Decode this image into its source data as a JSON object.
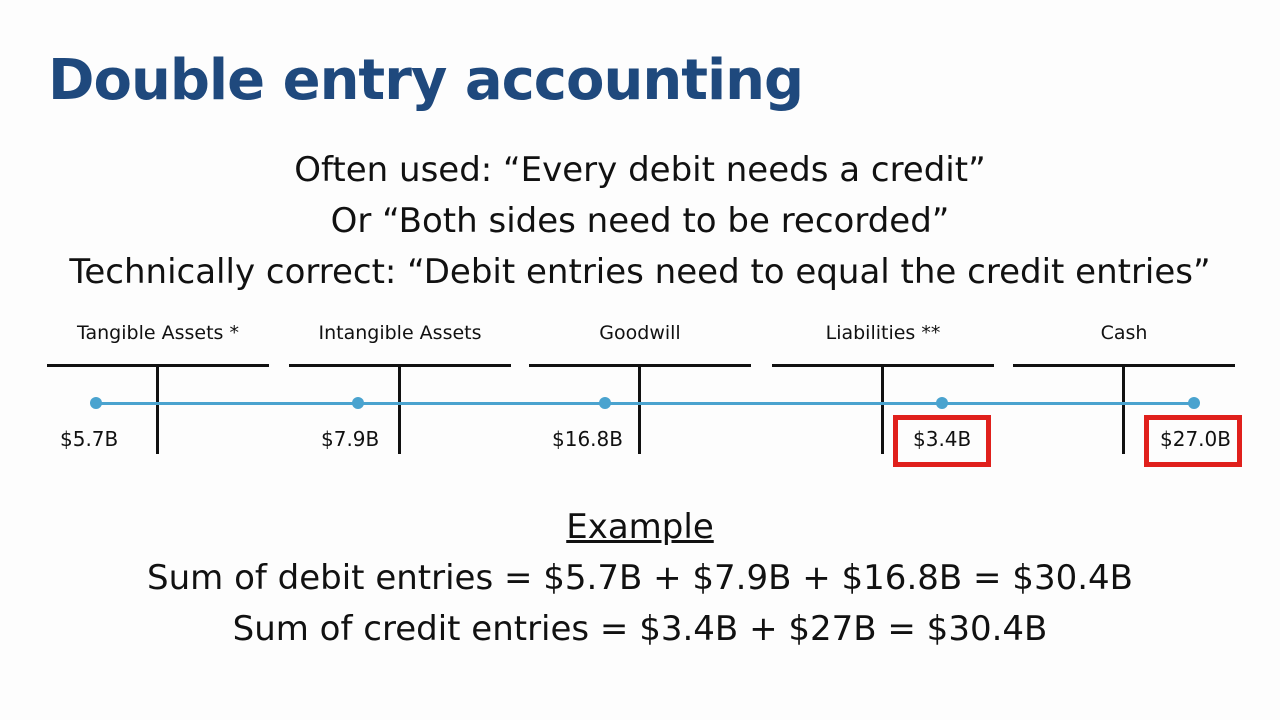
{
  "slide": {
    "title": "Double entry accounting",
    "lines": [
      "Often used: “Every debit needs a credit”",
      "Or “Both sides need to be recorded”",
      "Technically correct: “Debit entries need to equal the credit entries”"
    ]
  },
  "accounts": [
    {
      "name": "Tangible Assets *",
      "entry": "$5.7B",
      "side": "debit",
      "highlighted": false
    },
    {
      "name": "Intangible Assets",
      "entry": "$7.9B",
      "side": "debit",
      "highlighted": false
    },
    {
      "name": "Goodwill",
      "entry": "$16.8B",
      "side": "debit",
      "highlighted": false
    },
    {
      "name": "Liabilities **",
      "entry": "$3.4B",
      "side": "credit",
      "highlighted": true
    },
    {
      "name": "Cash",
      "entry": "$27.0B",
      "side": "credit",
      "highlighted": true
    }
  ],
  "example": {
    "heading": "Example",
    "debit_sum": "Sum of debit entries = $5.7B + $7.9B + $16.8B = $30.4B",
    "credit_sum": "Sum of credit entries = $3.4B + $27B = $30.4B"
  },
  "colors": {
    "title": "#1f497d",
    "timeline": "#4aa3cf",
    "highlight": "#e0201c"
  }
}
